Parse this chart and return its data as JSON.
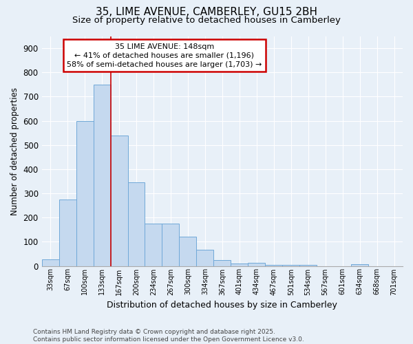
{
  "title1": "35, LIME AVENUE, CAMBERLEY, GU15 2BH",
  "title2": "Size of property relative to detached houses in Camberley",
  "xlabel": "Distribution of detached houses by size in Camberley",
  "ylabel": "Number of detached properties",
  "categories": [
    "33sqm",
    "67sqm",
    "100sqm",
    "133sqm",
    "167sqm",
    "200sqm",
    "234sqm",
    "267sqm",
    "300sqm",
    "334sqm",
    "367sqm",
    "401sqm",
    "434sqm",
    "467sqm",
    "501sqm",
    "534sqm",
    "567sqm",
    "601sqm",
    "634sqm",
    "668sqm",
    "701sqm"
  ],
  "values": [
    27,
    275,
    600,
    750,
    540,
    345,
    175,
    175,
    120,
    68,
    25,
    10,
    13,
    5,
    5,
    3,
    0,
    0,
    7,
    0,
    0
  ],
  "bar_color": "#c5d9ef",
  "bar_edge_color": "#6fa8d8",
  "background_color": "#e8f0f8",
  "grid_color": "#ffffff",
  "vline_color": "#cc0000",
  "vline_x_index": 3,
  "annotation_text": "35 LIME AVENUE: 148sqm\n← 41% of detached houses are smaller (1,196)\n58% of semi-detached houses are larger (1,703) →",
  "annotation_box_color": "#cc0000",
  "ylim": [
    0,
    950
  ],
  "yticks": [
    0,
    100,
    200,
    300,
    400,
    500,
    600,
    700,
    800,
    900
  ],
  "footer": "Contains HM Land Registry data © Crown copyright and database right 2025.\nContains public sector information licensed under the Open Government Licence v3.0."
}
